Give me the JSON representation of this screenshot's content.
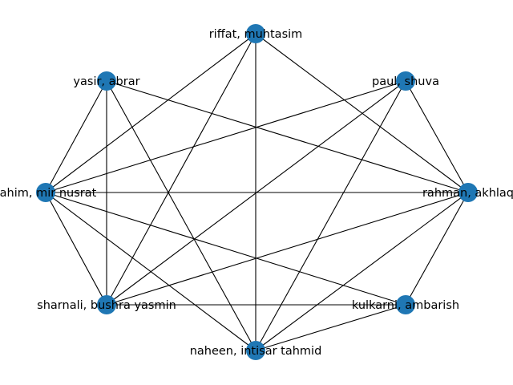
{
  "colors": {
    "node": "#1f77b4",
    "edge": "#000000",
    "background": "#ffffff"
  },
  "graph": {
    "nodes": [
      {
        "id": "riffat",
        "label": "riffat, muhtasim"
      },
      {
        "id": "yasir",
        "label": "yasir, abrar"
      },
      {
        "id": "paul",
        "label": "paul, shuva"
      },
      {
        "id": "rahim",
        "label": "rahim, mir nusrat"
      },
      {
        "id": "rahman",
        "label": "rahman, akhlaq"
      },
      {
        "id": "sharnali",
        "label": "sharnali, bushra yasmin"
      },
      {
        "id": "kulkarni",
        "label": "kulkarni, ambarish"
      },
      {
        "id": "naheen",
        "label": "naheen, intisar tahmid"
      }
    ],
    "edges": [
      [
        "riffat",
        "rahim"
      ],
      [
        "riffat",
        "sharnali"
      ],
      [
        "riffat",
        "naheen"
      ],
      [
        "riffat",
        "rahman"
      ],
      [
        "yasir",
        "rahim"
      ],
      [
        "yasir",
        "sharnali"
      ],
      [
        "yasir",
        "naheen"
      ],
      [
        "yasir",
        "rahman"
      ],
      [
        "paul",
        "rahim"
      ],
      [
        "paul",
        "sharnali"
      ],
      [
        "paul",
        "naheen"
      ],
      [
        "paul",
        "rahman"
      ],
      [
        "rahim",
        "rahman"
      ],
      [
        "rahim",
        "sharnali"
      ],
      [
        "rahim",
        "naheen"
      ],
      [
        "rahim",
        "kulkarni"
      ],
      [
        "rahman",
        "sharnali"
      ],
      [
        "rahman",
        "naheen"
      ],
      [
        "rahman",
        "kulkarni"
      ],
      [
        "sharnali",
        "kulkarni"
      ],
      [
        "naheen",
        "kulkarni"
      ]
    ]
  }
}
